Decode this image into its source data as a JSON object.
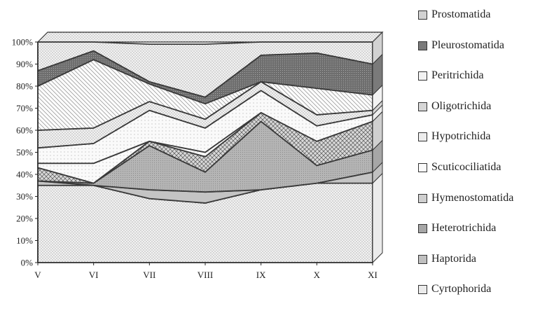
{
  "chart_data": {
    "type": "area",
    "stacked": true,
    "three_d": true,
    "categories": [
      "V",
      "VI",
      "VII",
      "VIII",
      "IX",
      "X",
      "XI"
    ],
    "ylim": [
      0,
      100
    ],
    "yticks": [
      "0%",
      "10%",
      "20%",
      "30%",
      "40%",
      "50%",
      "60%",
      "70%",
      "80%",
      "90%",
      "100%"
    ],
    "series": [
      {
        "name": "Cyrtophorida",
        "values": [
          35,
          35,
          29,
          27,
          33,
          36,
          36
        ],
        "color": "#ebebeb"
      },
      {
        "name": "Haptorida",
        "values": [
          2,
          0,
          4,
          5,
          0,
          0,
          5
        ],
        "color": "#c0c0c0"
      },
      {
        "name": "Heterotrichida",
        "values": [
          0,
          1,
          20,
          9,
          31,
          8,
          10
        ],
        "color": "#a6a6a6"
      },
      {
        "name": "Hymenostomatida",
        "values": [
          6,
          0,
          2,
          7,
          4,
          11,
          13
        ],
        "color": "#cfcfcf"
      },
      {
        "name": "Scuticociliatida",
        "values": [
          2,
          9,
          0,
          2,
          0,
          0,
          0
        ],
        "color": "#fafafa"
      },
      {
        "name": "Hypotrichida",
        "values": [
          7,
          9,
          14,
          11,
          10,
          7,
          3
        ],
        "color": "#ededed"
      },
      {
        "name": "Oligotrichida",
        "values": [
          8,
          7,
          4,
          4,
          4,
          5,
          2
        ],
        "color": "#d6d6d6"
      },
      {
        "name": "Peritrichida",
        "values": [
          20,
          31,
          8,
          7,
          0,
          12,
          7
        ],
        "color": "#f2f2f2"
      },
      {
        "name": "Pleurostomatida",
        "values": [
          7,
          4,
          1,
          3,
          12,
          16,
          14
        ],
        "color": "#7a7a7a"
      },
      {
        "name": "Prostomatida",
        "values": [
          13,
          4,
          17,
          24,
          6,
          5,
          10
        ],
        "color": "#d2d2d2"
      }
    ],
    "legend_placement": "right",
    "grid": false
  }
}
